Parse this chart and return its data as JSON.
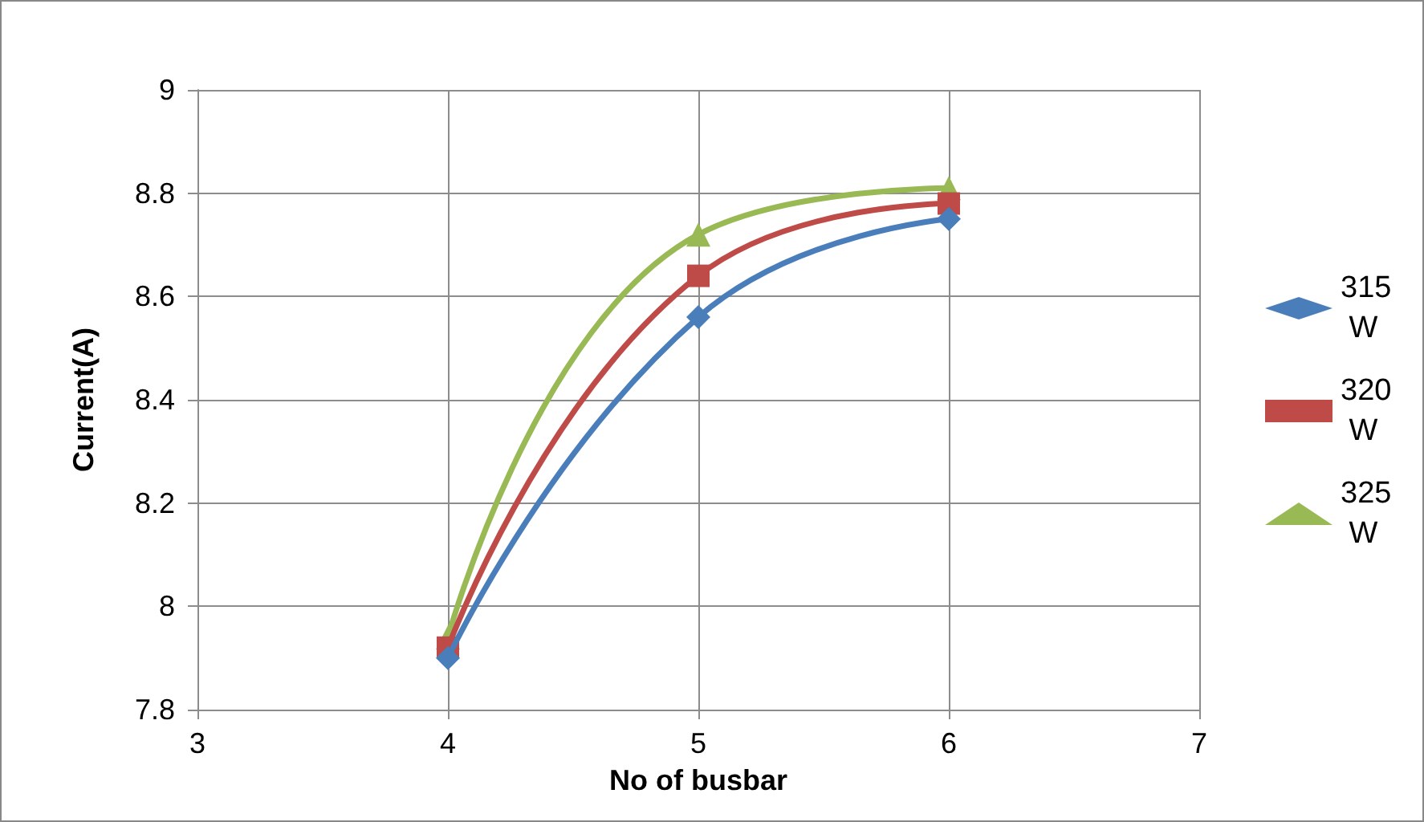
{
  "chart_data": {
    "type": "line",
    "xlabel": "No of busbar",
    "ylabel": "Current(A)",
    "x": [
      4,
      5,
      6
    ],
    "series": [
      {
        "name": "315 W",
        "color": "#4a7ebb",
        "values": [
          7.9,
          8.56,
          8.75
        ],
        "marker": "diamond"
      },
      {
        "name": "320 W",
        "color": "#be4b48",
        "values": [
          7.92,
          8.64,
          8.78
        ],
        "marker": "square"
      },
      {
        "name": "325 W",
        "color": "#98b954",
        "values": [
          7.94,
          8.72,
          8.81
        ],
        "marker": "triangle"
      }
    ],
    "xlim": [
      3,
      7
    ],
    "xticks": [
      3,
      4,
      5,
      6,
      7
    ],
    "ylim": [
      7.8,
      9
    ],
    "yticks": [
      7.8,
      8,
      8.2,
      8.4,
      8.6,
      8.8,
      9
    ],
    "grid": true,
    "legend": "right",
    "line_style": "solid"
  }
}
